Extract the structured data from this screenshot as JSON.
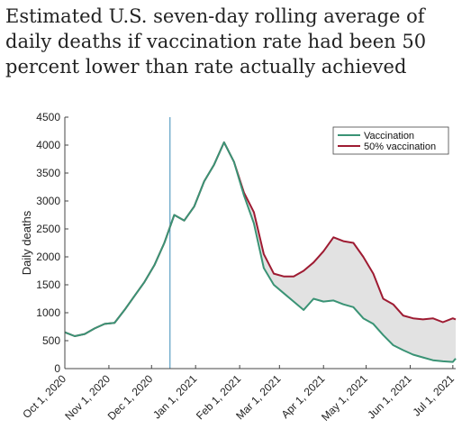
{
  "title": "Estimated U.S. seven-day rolling average of daily deaths if vaccination rate had been 50 percent lower than rate actually achieved",
  "chart_data": {
    "type": "line",
    "title": "Estimated U.S. seven-day rolling average of daily deaths if vaccination rate had been 50 percent lower than rate actually achieved",
    "xlabel": "",
    "ylabel": "Daily deaths",
    "ylim": [
      0,
      4500
    ],
    "xlim": [
      "2020-10-01",
      "2021-07-03"
    ],
    "x_ticks": [
      "2020-10-01",
      "2020-11-01",
      "2020-12-01",
      "2021-01-01",
      "2021-02-01",
      "2021-03-01",
      "2021-04-01",
      "2021-05-01",
      "2021-06-01",
      "2021-07-01"
    ],
    "x_tick_labels": [
      "Oct 1, 2020",
      "Nov 1, 2020",
      "Dec 1, 2020",
      "Jan 1, 2021",
      "Feb 1, 2021",
      "Mar 1, 2021",
      "Apr 1, 2021",
      "May 1, 2021",
      "Jun 1, 2021",
      "Jul 1, 2021"
    ],
    "y_ticks": [
      0,
      500,
      1000,
      1500,
      2000,
      2500,
      3000,
      3500,
      4000,
      4500
    ],
    "y_tick_labels": [
      "0",
      "500",
      "1000",
      "1500",
      "2000",
      "2500",
      "3000",
      "3500",
      "4000",
      "4500"
    ],
    "vertical_marker_date": "2020-12-14",
    "grid": false,
    "legend_position": "top-right",
    "fill_between": true,
    "colors": {
      "vaccination": "#3a9375",
      "half_vaccination": "#9e1b32",
      "fill": "#e2e2e2",
      "marker": "#3b8bb8"
    },
    "series": [
      {
        "name": "Vaccination",
        "x": [
          "2020-10-01",
          "2020-10-08",
          "2020-10-15",
          "2020-10-22",
          "2020-10-29",
          "2020-11-05",
          "2020-11-12",
          "2020-11-19",
          "2020-11-26",
          "2020-12-03",
          "2020-12-10",
          "2020-12-17",
          "2020-12-24",
          "2020-12-31",
          "2021-01-07",
          "2021-01-14",
          "2021-01-21",
          "2021-01-28",
          "2021-02-04",
          "2021-02-11",
          "2021-02-18",
          "2021-02-25",
          "2021-03-04",
          "2021-03-11",
          "2021-03-18",
          "2021-03-25",
          "2021-04-01",
          "2021-04-08",
          "2021-04-15",
          "2021-04-22",
          "2021-04-29",
          "2021-05-06",
          "2021-05-13",
          "2021-05-20",
          "2021-05-27",
          "2021-06-03",
          "2021-06-10",
          "2021-06-17",
          "2021-06-24",
          "2021-07-01",
          "2021-07-03"
        ],
        "values": [
          650,
          580,
          620,
          720,
          800,
          820,
          1050,
          1300,
          1550,
          1850,
          2250,
          2750,
          2650,
          2900,
          3350,
          3650,
          4050,
          3700,
          3100,
          2600,
          1800,
          1500,
          1350,
          1200,
          1050,
          1250,
          1200,
          1220,
          1150,
          1100,
          900,
          800,
          600,
          420,
          330,
          250,
          200,
          150,
          130,
          120,
          180
        ]
      },
      {
        "name": "50% vaccination",
        "x": [
          "2020-10-01",
          "2020-10-08",
          "2020-10-15",
          "2020-10-22",
          "2020-10-29",
          "2020-11-05",
          "2020-11-12",
          "2020-11-19",
          "2020-11-26",
          "2020-12-03",
          "2020-12-10",
          "2020-12-17",
          "2020-12-24",
          "2020-12-31",
          "2021-01-07",
          "2021-01-14",
          "2021-01-21",
          "2021-01-28",
          "2021-02-04",
          "2021-02-11",
          "2021-02-18",
          "2021-02-25",
          "2021-03-04",
          "2021-03-11",
          "2021-03-18",
          "2021-03-25",
          "2021-04-01",
          "2021-04-08",
          "2021-04-15",
          "2021-04-22",
          "2021-04-29",
          "2021-05-06",
          "2021-05-13",
          "2021-05-20",
          "2021-05-27",
          "2021-06-03",
          "2021-06-10",
          "2021-06-17",
          "2021-06-24",
          "2021-07-01",
          "2021-07-03"
        ],
        "values": [
          650,
          580,
          620,
          720,
          800,
          820,
          1050,
          1300,
          1550,
          1850,
          2250,
          2750,
          2650,
          2900,
          3350,
          3650,
          4050,
          3700,
          3150,
          2800,
          2050,
          1700,
          1650,
          1650,
          1750,
          1900,
          2100,
          2350,
          2280,
          2250,
          2000,
          1700,
          1250,
          1150,
          950,
          900,
          880,
          900,
          830,
          900,
          880
        ]
      }
    ]
  }
}
